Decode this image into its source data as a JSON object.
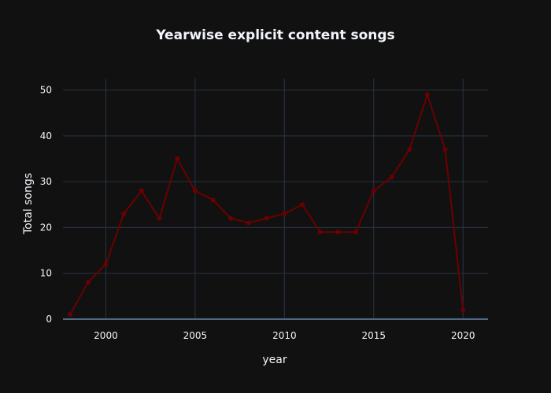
{
  "chart_data": {
    "type": "line",
    "title": "Yearwise explicit content songs",
    "xlabel": "year",
    "ylabel": "Total songs",
    "xlim": [
      1997.6,
      2021.4
    ],
    "ylim": [
      0,
      52.5
    ],
    "x_ticks": [
      2000,
      2005,
      2010,
      2015,
      2020
    ],
    "y_ticks": [
      0,
      10,
      20,
      30,
      40,
      50
    ],
    "grid": true,
    "legend": "none",
    "series": [
      {
        "x": [
          1998,
          1999,
          2000,
          2001,
          2002,
          2003,
          2004,
          2005,
          2006,
          2007,
          2008,
          2009,
          2010,
          2011,
          2012,
          2013,
          2014,
          2015,
          2016,
          2017,
          2018,
          2019,
          2020
        ],
        "values": [
          1,
          8,
          12,
          23,
          28,
          22,
          35,
          28,
          26,
          22,
          21,
          22,
          23,
          25,
          19,
          19,
          19,
          28,
          31,
          37,
          49,
          37,
          2
        ]
      }
    ]
  },
  "colors": {
    "background": "#111111",
    "grid": "#283442",
    "zeroline": "#506784",
    "line": "#6b0000",
    "text": "#f2f5fa"
  }
}
